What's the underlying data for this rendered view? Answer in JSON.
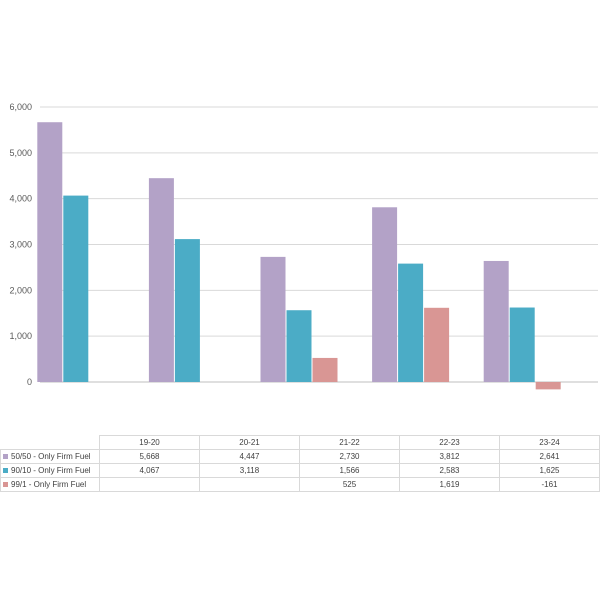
{
  "chart_data": {
    "type": "bar",
    "categories": [
      "19-20",
      "20-21",
      "21-22",
      "22-23",
      "23-24"
    ],
    "series": [
      {
        "name": "50/50 - Only Firm Fuel",
        "color": "#b3a2c7",
        "values": [
          5668,
          4447,
          2730,
          3812,
          2641
        ],
        "labels": [
          "5,668",
          "4,447",
          "2,730",
          "3,812",
          "2,641"
        ]
      },
      {
        "name": "90/10 - Only Firm Fuel",
        "color": "#4bacc6",
        "values": [
          4067,
          3118,
          1566,
          2583,
          1625
        ],
        "labels": [
          "4,067",
          "3,118",
          "1,566",
          "2,583",
          "1,625"
        ]
      },
      {
        "name": "99/1 - Only Firm Fuel",
        "color": "#d99694",
        "values": [
          null,
          null,
          525,
          1619,
          -161
        ],
        "labels": [
          "",
          "",
          "525",
          "1,619",
          "-161"
        ]
      }
    ],
    "yticks": [
      "0",
      "1,000",
      "2,000",
      "3,000",
      "4,000",
      "5,000",
      "6,000"
    ],
    "ylim": [
      0,
      6000
    ],
    "grid": true,
    "legend": "data-table"
  }
}
